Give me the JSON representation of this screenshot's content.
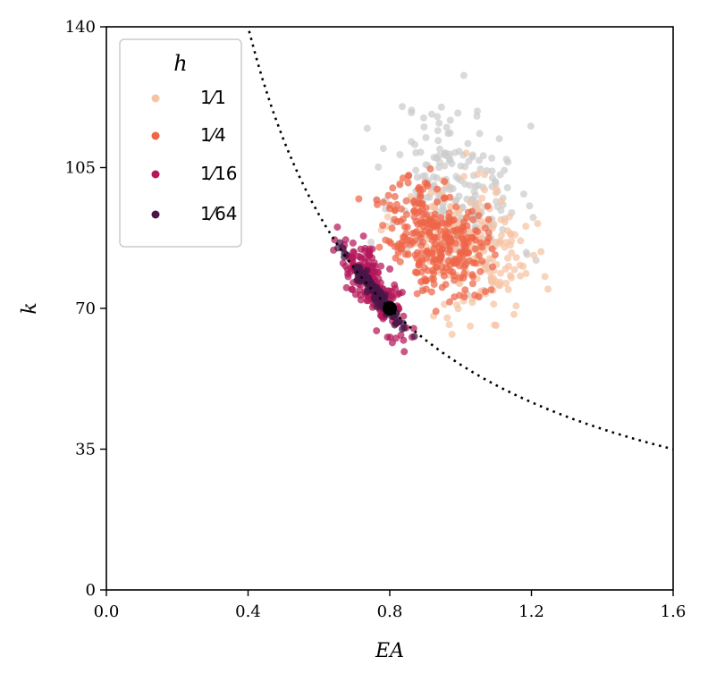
{
  "chart_data": {
    "type": "scatter",
    "xlabel": "EA",
    "ylabel": "k",
    "xlim": [
      0.0,
      1.6
    ],
    "ylim": [
      0,
      140
    ],
    "xticks": [
      "0.0",
      "0.4",
      "0.8",
      "1.2",
      "1.6"
    ],
    "yticks": [
      "0",
      "35",
      "70",
      "105",
      "140"
    ],
    "grid": false,
    "legend": {
      "title": "h",
      "placement": "top-left",
      "entries": [
        {
          "label": "1⁄1",
          "color": "#f6c4a4"
        },
        {
          "label": "1⁄4",
          "color": "#ee6548"
        },
        {
          "label": "1⁄16",
          "color": "#b4185a"
        },
        {
          "label": "1⁄64",
          "color": "#4a1648"
        }
      ]
    },
    "reference_curve": {
      "style": "dotted",
      "color": "#000000",
      "relation": "k = 56 / EA"
    },
    "reference_point": {
      "x": 0.8,
      "y": 70,
      "color": "#000000"
    },
    "series": [
      {
        "color": "#cccccc",
        "cx": 0.99,
        "cy": 99,
        "sx": 0.09,
        "sy": 11,
        "rho": -0.2,
        "n": 220,
        "seed": 11
      },
      {
        "name": "1⁄1",
        "color": "#f6c4a4",
        "cx": 1.02,
        "cy": 85,
        "sx": 0.09,
        "sy": 8,
        "rho": -0.3,
        "n": 220,
        "seed": 23
      },
      {
        "name": "1⁄4",
        "color": "#ee6548",
        "cx": 0.93,
        "cy": 88,
        "sx": 0.07,
        "sy": 7,
        "rho": -0.3,
        "n": 300,
        "seed": 37
      },
      {
        "name": "1⁄16",
        "color": "#b4185a",
        "cx": 0.75,
        "cy": 76,
        "sx": 0.045,
        "sy": 5.5,
        "rho": -0.75,
        "n": 220,
        "seed": 41
      },
      {
        "name": "1⁄64",
        "color": "#4a1648",
        "cx": 0.76,
        "cy": 74,
        "sx": 0.04,
        "sy": 4.5,
        "rho": -0.97,
        "n": 150,
        "seed": 53
      }
    ]
  }
}
